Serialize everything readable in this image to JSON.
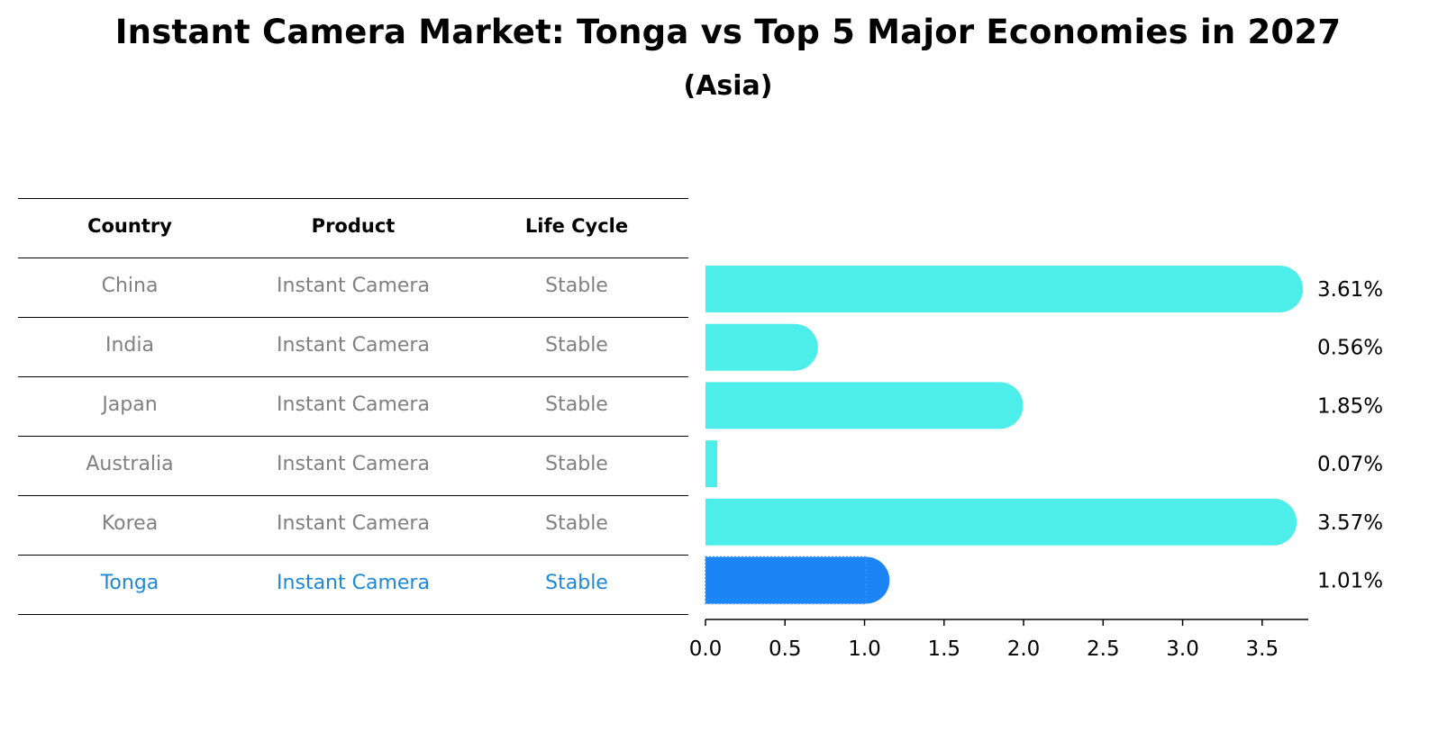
{
  "chart_data": {
    "type": "bar",
    "orientation": "horizontal",
    "title": "Instant Camera Market: Tonga vs Top 5 Major Economies in 2027",
    "subtitle": "(Asia)",
    "table_headers": [
      "Country",
      "Product",
      "Life Cycle"
    ],
    "rows": [
      {
        "country": "China",
        "product": "Instant Camera",
        "life_cycle": "Stable",
        "value": 3.61,
        "label": "3.61%",
        "highlight": false
      },
      {
        "country": "India",
        "product": "Instant Camera",
        "life_cycle": "Stable",
        "value": 0.56,
        "label": "0.56%",
        "highlight": false
      },
      {
        "country": "Japan",
        "product": "Instant Camera",
        "life_cycle": "Stable",
        "value": 1.85,
        "label": "1.85%",
        "highlight": false
      },
      {
        "country": "Australia",
        "product": "Instant Camera",
        "life_cycle": "Stable",
        "value": 0.07,
        "label": "0.07%",
        "highlight": false
      },
      {
        "country": "Korea",
        "product": "Instant Camera",
        "life_cycle": "Stable",
        "value": 3.57,
        "label": "3.57%",
        "highlight": false
      },
      {
        "country": "Tonga",
        "product": "Instant Camera",
        "life_cycle": "Stable",
        "value": 1.01,
        "label": "1.01%",
        "highlight": true
      }
    ],
    "x_ticks": [
      "0.0",
      "0.5",
      "1.0",
      "1.5",
      "2.0",
      "2.5",
      "3.0",
      "3.5"
    ],
    "x_tick_values": [
      0,
      0.5,
      1.0,
      1.5,
      2.0,
      2.5,
      3.0,
      3.5
    ],
    "xlim": [
      0,
      3.79
    ],
    "colors": {
      "bar": "#4deeea",
      "highlight_bar": "#1b85f5",
      "highlight_text": "#1f88d6",
      "muted_text": "#808080"
    }
  }
}
